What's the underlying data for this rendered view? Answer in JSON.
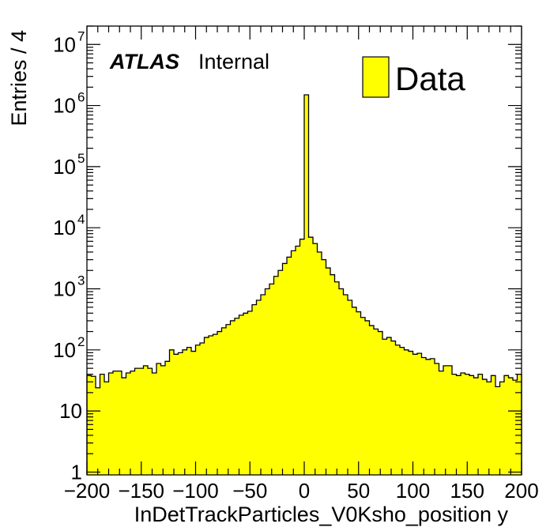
{
  "chart_data": {
    "type": "bar",
    "style": "histogram",
    "xlabel": "InDetTrackParticles_V0Ksho_position y",
    "ylabel": "Entries / 4",
    "xlim": [
      -200,
      200
    ],
    "ylim": [
      0.9,
      20000000
    ],
    "yscale": "log",
    "bin_width": 4,
    "x_ticks": [
      -200,
      -150,
      -100,
      -50,
      0,
      50,
      100,
      150,
      200
    ],
    "x_tick_labels": [
      "−200",
      "−150",
      "−100",
      "−50",
      "0",
      "50",
      "100",
      "150",
      "200"
    ],
    "y_ticks": [
      {
        "value": 1,
        "base": "1",
        "exp": ""
      },
      {
        "value": 10,
        "base": "10",
        "exp": ""
      },
      {
        "value": 100,
        "base": "10",
        "exp": "2"
      },
      {
        "value": 1000,
        "base": "10",
        "exp": "3"
      },
      {
        "value": 10000,
        "base": "10",
        "exp": "4"
      },
      {
        "value": 100000,
        "base": "10",
        "exp": "5"
      },
      {
        "value": 1000000,
        "base": "10",
        "exp": "6"
      },
      {
        "value": 10000000,
        "base": "10",
        "exp": "7"
      }
    ],
    "atlas_label": "ATLAS",
    "atlas_sublabel": "Internal",
    "legend": {
      "label": "Data",
      "position": "top-right"
    },
    "fill_color": "#ffff00",
    "line_color": "#000000",
    "series": [
      {
        "name": "Data",
        "bin_low_edges": [
          -200,
          -196,
          -192,
          -188,
          -184,
          -180,
          -176,
          -172,
          -168,
          -164,
          -160,
          -156,
          -152,
          -148,
          -144,
          -140,
          -136,
          -132,
          -128,
          -124,
          -120,
          -116,
          -112,
          -108,
          -104,
          -100,
          -96,
          -92,
          -88,
          -84,
          -80,
          -76,
          -72,
          -68,
          -64,
          -60,
          -56,
          -52,
          -48,
          -44,
          -40,
          -36,
          -32,
          -28,
          -24,
          -20,
          -16,
          -12,
          -8,
          -4,
          0,
          4,
          8,
          12,
          16,
          20,
          24,
          28,
          32,
          36,
          40,
          44,
          48,
          52,
          56,
          60,
          64,
          68,
          72,
          76,
          80,
          84,
          88,
          92,
          96,
          100,
          104,
          108,
          112,
          116,
          120,
          124,
          128,
          132,
          136,
          140,
          144,
          148,
          152,
          156,
          160,
          164,
          168,
          172,
          176,
          180,
          184,
          188,
          192,
          196
        ],
        "values": [
          38,
          37,
          24,
          40,
          30,
          42,
          45,
          45,
          35,
          42,
          45,
          50,
          50,
          55,
          50,
          42,
          60,
          55,
          65,
          100,
          85,
          90,
          100,
          110,
          95,
          120,
          130,
          160,
          170,
          180,
          200,
          230,
          260,
          300,
          330,
          370,
          400,
          430,
          550,
          650,
          800,
          1000,
          1200,
          1600,
          2000,
          2600,
          3300,
          4200,
          5000,
          6500,
          1500000,
          7000,
          5500,
          4000,
          3000,
          2200,
          1700,
          1300,
          1000,
          800,
          650,
          500,
          420,
          340,
          300,
          250,
          220,
          200,
          150,
          160,
          140,
          120,
          110,
          100,
          95,
          85,
          88,
          75,
          70,
          72,
          60,
          45,
          55,
          55,
          40,
          38,
          42,
          40,
          38,
          35,
          40,
          33,
          30,
          38,
          25,
          30,
          38,
          35,
          32,
          40
        ]
      }
    ]
  }
}
